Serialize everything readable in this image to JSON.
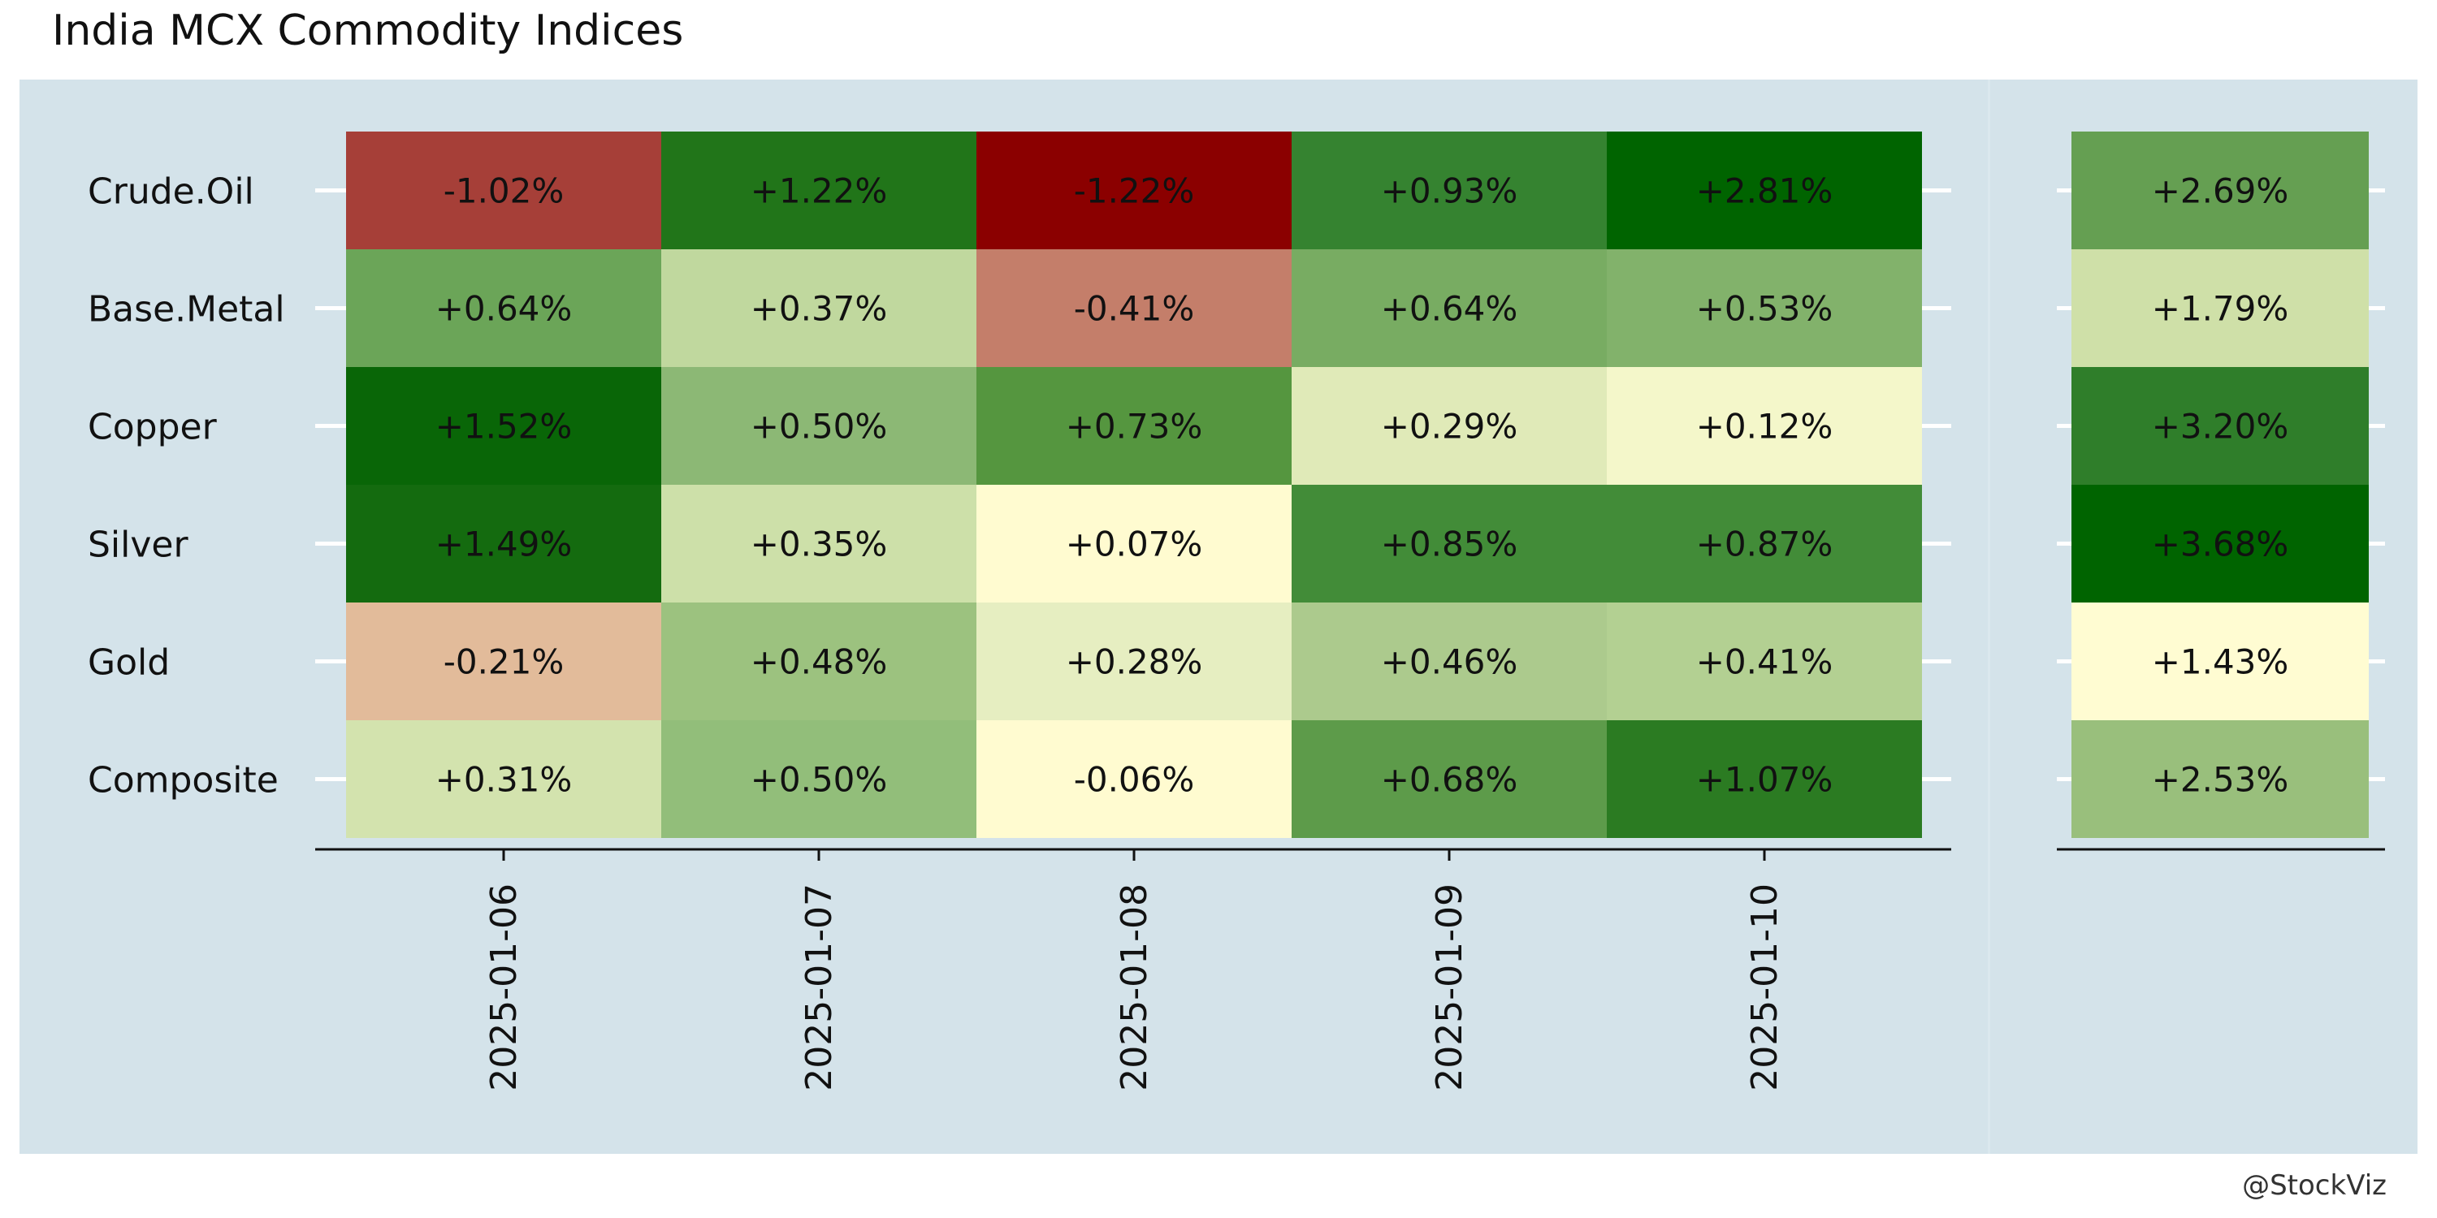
{
  "page": {
    "title": "India MCX Commodity Indices",
    "credit": "@StockViz"
  },
  "chart_data": {
    "type": "heatmap",
    "title": "India MCX Commodity Indices",
    "rows": [
      "Crude.Oil",
      "Base.Metal",
      "Copper",
      "Silver",
      "Gold",
      "Composite"
    ],
    "columns": [
      "2025-01-06",
      "2025-01-07",
      "2025-01-08",
      "2025-01-09",
      "2025-01-10"
    ],
    "values": [
      [
        -1.02,
        1.22,
        -1.22,
        0.93,
        2.81
      ],
      [
        0.64,
        0.37,
        -0.41,
        0.64,
        0.53
      ],
      [
        1.52,
        0.5,
        0.73,
        0.29,
        0.12
      ],
      [
        1.49,
        0.35,
        0.07,
        0.85,
        0.87
      ],
      [
        -0.21,
        0.48,
        0.28,
        0.46,
        0.41
      ],
      [
        0.31,
        0.5,
        -0.06,
        0.68,
        1.07
      ]
    ],
    "labels": [
      [
        "-1.02%",
        "+1.22%",
        "-1.22%",
        "+0.93%",
        "+2.81%"
      ],
      [
        "+0.64%",
        "+0.37%",
        "-0.41%",
        "+0.64%",
        "+0.53%"
      ],
      [
        "+1.52%",
        "+0.50%",
        "+0.73%",
        "+0.29%",
        "+0.12%"
      ],
      [
        "+1.49%",
        "+0.35%",
        "+0.07%",
        "+0.85%",
        "+0.87%"
      ],
      [
        "-0.21%",
        "+0.48%",
        "+0.28%",
        "+0.46%",
        "+0.41%"
      ],
      [
        "+0.31%",
        "+0.50%",
        "-0.06%",
        "+0.68%",
        "+1.07%"
      ]
    ],
    "colors": [
      [
        "#a63f38",
        "#217519",
        "#8b0000",
        "#358330",
        "#006400"
      ],
      [
        "#6ba558",
        "#c0d89e",
        "#c47e6a",
        "#78ac62",
        "#82b26b"
      ],
      [
        "#096607",
        "#8cb875",
        "#55963f",
        "#e0eab8",
        "#f4f7ca"
      ],
      [
        "#146b0f",
        "#cde0a9",
        "#fffbd0",
        "#428c38",
        "#428c38"
      ],
      [
        "#e2bb9a",
        "#9cc27f",
        "#e6eec1",
        "#acca8d",
        "#b3d092"
      ],
      [
        "#d3e3ae",
        "#92be7a",
        "#fffbd0",
        "#5d9b4a",
        "#2b7b22"
      ]
    ],
    "totals": {
      "values": [
        2.69,
        1.79,
        3.2,
        3.68,
        1.43,
        2.53
      ],
      "labels": [
        "+2.69%",
        "+1.79%",
        "+3.20%",
        "+3.68%",
        "+1.43%",
        "+2.53%"
      ],
      "colors": [
        "#659f52",
        "#cfe0a8",
        "#2f7e2a",
        "#006400",
        "#fffcd2",
        "#99bf7c"
      ]
    },
    "color_scale": {
      "negative": "#8b0000",
      "neutral": "#fffbd0",
      "positive": "#006400"
    },
    "grid": true,
    "legend": "none"
  }
}
